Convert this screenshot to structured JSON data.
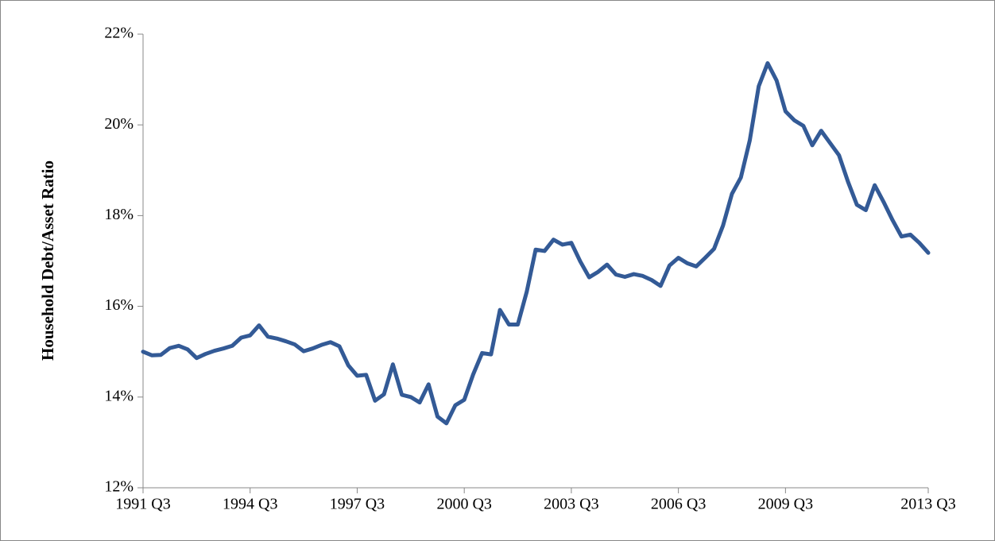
{
  "chart_data": {
    "type": "line",
    "y_label": "Household Debt/Asset Ratio",
    "categories": [
      "1991 Q3",
      null,
      null,
      null,
      null,
      null,
      null,
      null,
      null,
      null,
      null,
      null,
      "1994 Q3",
      null,
      null,
      null,
      null,
      null,
      null,
      null,
      null,
      null,
      null,
      null,
      "1997 Q3",
      null,
      null,
      null,
      null,
      null,
      null,
      null,
      null,
      null,
      null,
      null,
      "2000 Q3",
      null,
      null,
      null,
      null,
      null,
      null,
      null,
      null,
      null,
      null,
      null,
      "2003 Q3",
      null,
      null,
      null,
      null,
      null,
      null,
      null,
      null,
      null,
      null,
      null,
      "2006 Q3",
      null,
      null,
      null,
      null,
      null,
      null,
      null,
      null,
      null,
      null,
      null,
      "2009 Q3",
      null,
      null,
      null,
      null,
      null,
      null,
      null,
      null,
      null,
      null,
      null,
      null,
      null,
      null,
      null,
      "2013 Q3"
    ],
    "series": [
      {
        "color": "#335a96",
        "values": [
          15.0,
          14.92,
          14.93,
          15.08,
          15.13,
          15.05,
          14.86,
          14.95,
          15.02,
          15.07,
          15.13,
          15.31,
          15.36,
          15.58,
          15.33,
          15.29,
          15.23,
          15.16,
          15.01,
          15.07,
          15.15,
          15.21,
          15.12,
          14.7,
          14.47,
          14.49,
          13.92,
          14.06,
          14.72,
          14.05,
          14.0,
          13.88,
          14.28,
          13.57,
          13.42,
          13.82,
          13.94,
          14.5,
          14.97,
          14.94,
          15.92,
          15.6,
          15.6,
          16.32,
          17.25,
          17.22,
          17.47,
          17.36,
          17.4,
          16.99,
          16.64,
          16.76,
          16.92,
          16.7,
          16.65,
          16.71,
          16.67,
          16.58,
          16.45,
          16.9,
          17.07,
          16.95,
          16.88,
          17.07,
          17.27,
          17.78,
          18.48,
          18.84,
          19.66,
          20.85,
          21.36,
          20.98,
          20.3,
          20.1,
          19.98,
          19.55,
          19.87,
          19.6,
          19.33,
          18.75,
          18.24,
          18.12,
          18.67,
          18.3,
          17.9,
          17.54,
          17.58,
          17.4,
          17.18
        ]
      }
    ],
    "ylim": [
      12,
      22
    ],
    "yticks": [
      {
        "value": 12,
        "label": "12%"
      },
      {
        "value": 14,
        "label": "14%"
      },
      {
        "value": 16,
        "label": "16%"
      },
      {
        "value": 18,
        "label": "18%"
      },
      {
        "value": 20,
        "label": "20%"
      },
      {
        "value": 22,
        "label": "22%"
      }
    ],
    "grid": false
  }
}
